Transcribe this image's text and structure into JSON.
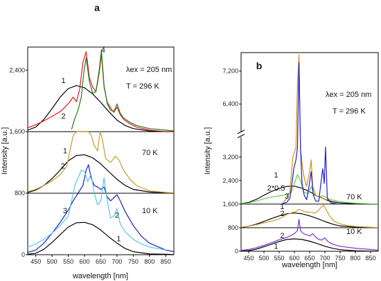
{
  "chart_data": [
    {
      "type": "line",
      "panel_label": "a",
      "xlabel": "wavelength [nm]",
      "ylabel": "Intensity [a.u.]",
      "xlim": [
        425,
        875
      ],
      "ylim": [
        0,
        2700
      ],
      "xticks": [
        450,
        500,
        550,
        600,
        650,
        700,
        750,
        800,
        850
      ],
      "xtick_labels": [
        "450",
        "500",
        "550",
        "600",
        "650",
        "700",
        "750",
        "800",
        "850"
      ],
      "yticks": [
        0,
        800,
        1600,
        2400
      ],
      "ytick_labels": [
        "0",
        "800",
        "1,600",
        "2,400"
      ],
      "separators_y": [
        800,
        1600
      ],
      "annotations": {
        "lambda_ex": "λex = 205 nm",
        "temp_296": "T = 296 K",
        "temp_70": "70 K",
        "temp_10": "10 K"
      },
      "curve_labels": [
        {
          "text": "1",
          "x": 535,
          "y": 2230
        },
        {
          "text": "2",
          "x": 535,
          "y": 1770
        },
        {
          "text": "4",
          "x": 657,
          "y": 2630
        },
        {
          "text": "1",
          "x": 540,
          "y": 1320
        },
        {
          "text": "2",
          "x": 533,
          "y": 1120
        },
        {
          "text": "3",
          "x": 540,
          "y": 540
        },
        {
          "text": "2",
          "x": 700,
          "y": 480
        },
        {
          "text": "1",
          "x": 705,
          "y": 175
        }
      ],
      "series": [
        {
          "color": "#000000",
          "x": [
            425,
            450,
            475,
            500,
            525,
            550,
            575,
            600,
            625,
            650,
            675,
            700,
            725,
            750,
            800,
            850,
            875
          ],
          "y": [
            1620,
            1660,
            1760,
            1900,
            2050,
            2160,
            2200,
            2170,
            2090,
            1980,
            1860,
            1750,
            1680,
            1640,
            1610,
            1600,
            1600
          ]
        },
        {
          "color": "#e8181c",
          "x": [
            425,
            450,
            475,
            500,
            525,
            540,
            555,
            565,
            575,
            585,
            595,
            605,
            615,
            625,
            635,
            645,
            652,
            660,
            670,
            680,
            690,
            700,
            710,
            720,
            740,
            760,
            800,
            850,
            875
          ],
          "y": [
            1650,
            1690,
            1740,
            1800,
            1860,
            1920,
            1990,
            2050,
            1990,
            2150,
            2500,
            2640,
            2300,
            2180,
            2120,
            2360,
            2610,
            2180,
            1980,
            1910,
            1850,
            1920,
            1820,
            1760,
            1700,
            1660,
            1620,
            1600,
            1600
          ]
        },
        {
          "color": "#1e7d1e",
          "x": [
            560,
            570,
            580,
            590,
            598,
            605,
            615,
            625,
            635,
            645,
            652,
            660,
            670,
            680,
            690,
            700,
            710,
            720,
            740,
            760,
            800,
            850,
            875
          ],
          "y": [
            1630,
            1770,
            1880,
            2050,
            2380,
            2560,
            2250,
            2100,
            2120,
            2400,
            2660,
            2200,
            1960,
            1880,
            1860,
            1960,
            1840,
            1780,
            1720,
            1680,
            1640,
            1620,
            1610
          ]
        },
        {
          "color": "#000000",
          "x": [
            425,
            450,
            475,
            500,
            525,
            550,
            575,
            600,
            625,
            650,
            675,
            700,
            725,
            750,
            800,
            850,
            875
          ],
          "y": [
            810,
            840,
            900,
            990,
            1100,
            1220,
            1290,
            1300,
            1260,
            1180,
            1080,
            980,
            900,
            850,
            815,
            805,
            800
          ]
        },
        {
          "color": "#c99a28",
          "x": [
            425,
            450,
            475,
            500,
            525,
            545,
            555,
            565,
            575,
            585,
            592,
            598,
            605,
            612,
            620,
            630,
            640,
            648,
            655,
            665,
            680,
            695,
            705,
            720,
            740,
            760,
            800,
            850,
            875
          ],
          "y": [
            820,
            850,
            900,
            960,
            1040,
            1150,
            1350,
            1550,
            1600,
            1600,
            1600,
            1600,
            1600,
            1600,
            1560,
            1420,
            1350,
            1600,
            1500,
            1250,
            1200,
            1280,
            1240,
            1100,
            980,
            900,
            830,
            810,
            805
          ]
        },
        {
          "color": "#000000",
          "x": [
            425,
            450,
            475,
            500,
            525,
            550,
            575,
            600,
            625,
            650,
            675,
            700,
            725,
            750,
            800,
            850,
            875
          ],
          "y": [
            5,
            20,
            70,
            160,
            260,
            360,
            415,
            420,
            390,
            320,
            230,
            150,
            80,
            40,
            10,
            5,
            3
          ]
        },
        {
          "color": "#1c1cc0",
          "x": [
            425,
            450,
            475,
            500,
            525,
            550,
            565,
            580,
            595,
            605,
            612,
            620,
            630,
            640,
            650,
            660,
            670,
            680,
            690,
            700,
            710,
            725,
            750,
            775,
            800,
            850,
            875
          ],
          "y": [
            30,
            60,
            150,
            280,
            420,
            580,
            700,
            800,
            900,
            1100,
            1170,
            1000,
            900,
            880,
            850,
            880,
            750,
            700,
            740,
            780,
            700,
            560,
            380,
            240,
            150,
            60,
            40
          ]
        },
        {
          "color": "#57c6e6",
          "x": [
            425,
            450,
            475,
            500,
            525,
            550,
            560,
            570,
            580,
            590,
            600,
            610,
            620,
            630,
            640,
            650,
            660,
            670,
            680,
            690,
            700,
            710,
            725,
            750,
            775,
            800,
            850
          ],
          "y": [
            100,
            140,
            200,
            280,
            380,
            500,
            700,
            900,
            1000,
            1100,
            1080,
            950,
            1050,
            800,
            650,
            700,
            1000,
            700,
            480,
            500,
            600,
            400,
            300,
            200,
            140,
            100,
            60
          ]
        }
      ]
    },
    {
      "type": "line",
      "panel_label": "b",
      "xlabel": "wavelength [nm]",
      "ylabel": "Intensity [a.u.]",
      "xlim": [
        425,
        875
      ],
      "axis_break": {
        "lower_max": 3500,
        "upper_min": 6000,
        "upper_max": 7650
      },
      "xticks": [
        450,
        500,
        550,
        600,
        650,
        700,
        750,
        800,
        850
      ],
      "xtick_labels": [
        "450",
        "500",
        "550",
        "600",
        "650",
        "700",
        "750",
        "800",
        "850"
      ],
      "yticks_lower": [
        0,
        800,
        1600,
        2400,
        3200
      ],
      "yticks_lower_labels": [
        "0",
        "800",
        "1,600",
        "2,400",
        "3,200"
      ],
      "yticks_upper": [
        6400,
        7200
      ],
      "yticks_upper_labels": [
        "6,400",
        "7,200"
      ],
      "separators_y": [
        800,
        1600
      ],
      "annotations": {
        "lambda_ex": "λex = 205 nm",
        "temp_296": "T = 296 K",
        "temp_70": "70 K",
        "temp_10": "10 K"
      },
      "curve_labels": [
        {
          "text": "1",
          "x": 540,
          "y": 2500
        },
        {
          "text": "2*0.5",
          "x": 540,
          "y": 2050
        },
        {
          "text": "3",
          "x": 575,
          "y": 1790
        },
        {
          "text": "1",
          "x": 560,
          "y": 1430
        },
        {
          "text": "2",
          "x": 560,
          "y": 1200
        },
        {
          "text": "2",
          "x": 560,
          "y": 450
        },
        {
          "text": "1",
          "x": 540,
          "y": 80
        }
      ],
      "series": [
        {
          "color": "#000000",
          "x": [
            425,
            450,
            475,
            500,
            525,
            550,
            575,
            600,
            625,
            650,
            675,
            700,
            725,
            750,
            800,
            850,
            875
          ],
          "y": [
            1620,
            1660,
            1760,
            1900,
            2030,
            2130,
            2200,
            2210,
            2140,
            2020,
            1880,
            1760,
            1680,
            1640,
            1610,
            1600,
            1600
          ]
        },
        {
          "color": "#5fce4a",
          "x": [
            425,
            450,
            475,
            500,
            525,
            550,
            570,
            590,
            600,
            610,
            620,
            630,
            645,
            655,
            665,
            680,
            695,
            705,
            720,
            750,
            800,
            850,
            875
          ],
          "y": [
            1620,
            1640,
            1700,
            1780,
            1840,
            1880,
            1920,
            2000,
            2300,
            2600,
            2400,
            2000,
            1960,
            2200,
            1900,
            1850,
            1880,
            1820,
            1750,
            1680,
            1630,
            1610,
            1605
          ]
        },
        {
          "color": "#d38f1a",
          "x": [
            560,
            575,
            585,
            595,
            605,
            610,
            615,
            620,
            625,
            630,
            640,
            650,
            655,
            660,
            670,
            690,
            700,
            710,
            730
          ],
          "y": [
            1610,
            1800,
            2000,
            3200,
            3500,
            6900,
            7600,
            3500,
            3000,
            2600,
            2200,
            2700,
            3100,
            2200,
            1900,
            1800,
            1760,
            1700,
            1650
          ]
        },
        {
          "color": "#1d1dd6",
          "x": [
            560,
            575,
            585,
            592,
            598,
            605,
            610,
            615,
            620,
            625,
            632,
            640,
            648,
            655,
            662,
            670,
            680,
            688,
            693,
            698,
            702,
            708,
            720,
            740
          ],
          "y": [
            1610,
            1660,
            1800,
            2300,
            2800,
            3100,
            3500,
            7400,
            3500,
            2300,
            1900,
            1750,
            2200,
            2700,
            1900,
            1700,
            1700,
            2400,
            2800,
            2300,
            3600,
            1800,
            1640,
            1610
          ]
        },
        {
          "color": "#000000",
          "x": [
            425,
            450,
            475,
            500,
            525,
            550,
            575,
            600,
            625,
            650,
            675,
            700,
            725,
            750,
            800,
            850,
            875
          ],
          "y": [
            810,
            850,
            920,
            1010,
            1110,
            1200,
            1270,
            1300,
            1270,
            1200,
            1110,
            1010,
            920,
            860,
            820,
            805,
            800
          ]
        },
        {
          "color": "#c99a28",
          "x": [
            425,
            450,
            475,
            500,
            525,
            550,
            565,
            575,
            585,
            595,
            605,
            615,
            625,
            635,
            645,
            655,
            665,
            675,
            685,
            695,
            705,
            715,
            730,
            750,
            775,
            800,
            850,
            875
          ],
          "y": [
            820,
            850,
            900,
            960,
            1020,
            1100,
            1180,
            1250,
            1280,
            1320,
            1350,
            1420,
            1380,
            1340,
            1330,
            1320,
            1290,
            1340,
            1460,
            1560,
            1400,
            1200,
            1020,
            930,
            870,
            840,
            815,
            805
          ]
        },
        {
          "color": "#000000",
          "x": [
            425,
            450,
            475,
            500,
            525,
            550,
            575,
            600,
            625,
            650,
            675,
            700,
            725,
            750,
            800,
            850,
            875
          ],
          "y": [
            5,
            20,
            70,
            150,
            240,
            330,
            400,
            420,
            400,
            340,
            260,
            170,
            100,
            55,
            15,
            5,
            3
          ]
        },
        {
          "color": "#7b2fc8",
          "x": [
            425,
            450,
            475,
            500,
            525,
            550,
            575,
            590,
            600,
            610,
            615,
            620,
            630,
            640,
            650,
            660,
            670,
            680,
            690,
            700,
            710,
            725,
            750,
            800,
            850,
            875
          ],
          "y": [
            30,
            60,
            120,
            200,
            290,
            390,
            470,
            540,
            600,
            700,
            1080,
            700,
            600,
            560,
            520,
            600,
            480,
            400,
            380,
            450,
            330,
            240,
            170,
            100,
            60,
            40
          ]
        }
      ]
    }
  ]
}
